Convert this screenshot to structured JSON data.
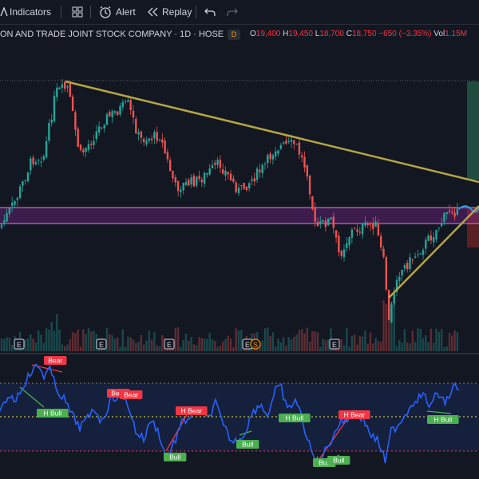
{
  "toolbar": {
    "indicators_label": "Indicators",
    "alert_label": "Alert",
    "replay_label": "Replay"
  },
  "symbol": {
    "title": "ON AND TRADE JOINT STOCK COMPANY · 1D · HOSE",
    "data_source_badge": "D"
  },
  "ohlc": {
    "o_label": "O",
    "o_value": "19,400",
    "h_label": "H",
    "h_value": "19,450",
    "l_label": "L",
    "l_value": "18,700",
    "c_label": "C",
    "c_value": "18,750",
    "change": "−650 (−3.35%)",
    "vol_label": "Vol",
    "vol_value": "1.15M"
  },
  "events": {
    "earnings_marker": "E",
    "split_marker": "S"
  },
  "divergence_labels": {
    "bear": "Bear",
    "h_bull": "H Bull",
    "h_bear": "H Bear",
    "bull": "Bull"
  },
  "colors": {
    "background": "#131722",
    "candle_up": "#26a69a",
    "candle_down": "#ef5350",
    "trendline": "#b5a642",
    "zone": "#9c27b0",
    "rsi_line": "#2962ff",
    "bull_label": "#4caf50",
    "bear_label": "#f23645"
  },
  "icons": [
    "indicators-icon",
    "templates-grid-icon",
    "alert-clock-icon",
    "replay-icon",
    "undo-icon",
    "redo-icon"
  ]
}
